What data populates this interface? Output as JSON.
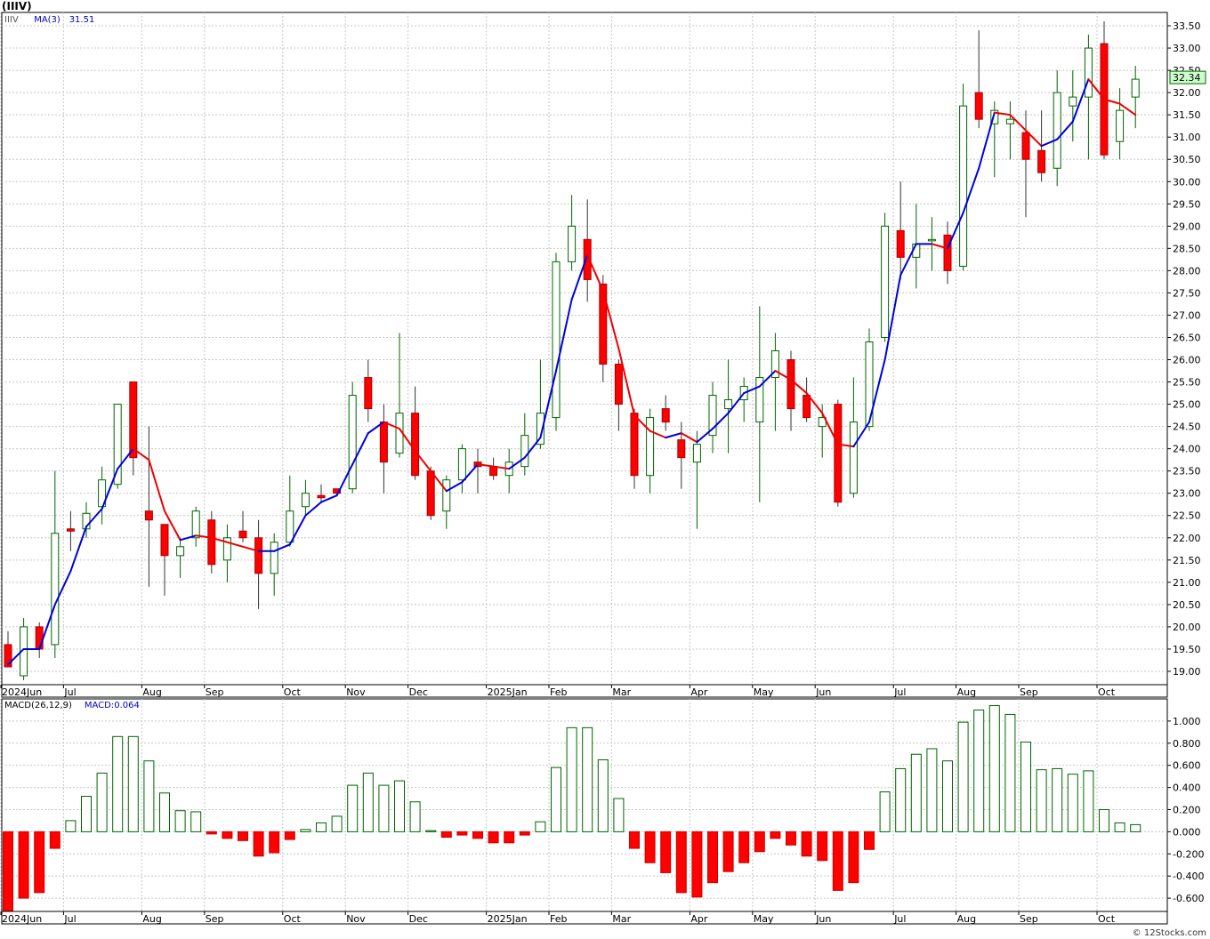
{
  "title": "(IIIV)",
  "credit": "© 12Stocks.com",
  "chart_data": [
    {
      "type": "candlestick",
      "title": "(IIIV)",
      "legend": [
        {
          "text": "IIIV",
          "color": "#555555"
        },
        {
          "text": "MA(3)",
          "color": "#0000cc"
        },
        {
          "text": "31.51",
          "color": "#0000cc"
        }
      ],
      "last_price": "32.34",
      "ylim": [
        18.7,
        33.8
      ],
      "grid": true,
      "y_ticks": [
        "19.00",
        "19.50",
        "20.00",
        "20.50",
        "21.00",
        "21.50",
        "22.00",
        "22.50",
        "23.00",
        "23.50",
        "24.00",
        "24.50",
        "25.00",
        "25.50",
        "26.00",
        "26.50",
        "27.00",
        "27.50",
        "28.00",
        "28.50",
        "29.00",
        "29.50",
        "30.00",
        "30.50",
        "31.00",
        "31.50",
        "32.00",
        "32.50",
        "33.00",
        "33.50"
      ],
      "x_labels": [
        {
          "label": "2024Jun",
          "week": 0
        },
        {
          "label": "Jul",
          "week": 4
        },
        {
          "label": "Aug",
          "week": 9
        },
        {
          "label": "Sep",
          "week": 13
        },
        {
          "label": "Oct",
          "week": 18
        },
        {
          "label": "Nov",
          "week": 22
        },
        {
          "label": "Dec",
          "week": 26
        },
        {
          "label": "2025Jan",
          "week": 31
        },
        {
          "label": "Feb",
          "week": 35
        },
        {
          "label": "Mar",
          "week": 39
        },
        {
          "label": "Apr",
          "week": 44
        },
        {
          "label": "May",
          "week": 48
        },
        {
          "label": "Jun",
          "week": 52
        },
        {
          "label": "Jul",
          "week": 57
        },
        {
          "label": "Aug",
          "week": 61
        },
        {
          "label": "Sep",
          "week": 65
        },
        {
          "label": "Oct",
          "week": 70
        }
      ],
      "candles": [
        {
          "o": 19.6,
          "h": 19.9,
          "l": 19.1,
          "c": 19.1
        },
        {
          "o": 18.9,
          "h": 20.2,
          "l": 18.8,
          "c": 20.0
        },
        {
          "o": 20.0,
          "h": 20.1,
          "l": 19.3,
          "c": 19.5
        },
        {
          "o": 19.6,
          "h": 23.5,
          "l": 19.3,
          "c": 22.1
        },
        {
          "o": 22.2,
          "h": 22.6,
          "l": 21.7,
          "c": 22.15
        },
        {
          "o": 22.2,
          "h": 22.8,
          "l": 22.0,
          "c": 22.55
        },
        {
          "o": 22.7,
          "h": 23.6,
          "l": 22.3,
          "c": 23.3
        },
        {
          "o": 23.2,
          "h": 25.0,
          "l": 23.1,
          "c": 25.0
        },
        {
          "o": 25.5,
          "h": 25.5,
          "l": 23.4,
          "c": 23.8
        },
        {
          "o": 22.6,
          "h": 24.5,
          "l": 20.9,
          "c": 22.4
        },
        {
          "o": 22.3,
          "h": 22.3,
          "l": 20.7,
          "c": 21.6
        },
        {
          "o": 21.6,
          "h": 22.0,
          "l": 21.1,
          "c": 21.8
        },
        {
          "o": 22.0,
          "h": 22.7,
          "l": 21.8,
          "c": 22.6
        },
        {
          "o": 22.4,
          "h": 22.6,
          "l": 21.2,
          "c": 21.4
        },
        {
          "o": 21.5,
          "h": 22.3,
          "l": 21.0,
          "c": 22.0
        },
        {
          "o": 22.15,
          "h": 22.6,
          "l": 21.9,
          "c": 22.0
        },
        {
          "o": 22.0,
          "h": 22.4,
          "l": 20.4,
          "c": 21.2
        },
        {
          "o": 21.2,
          "h": 22.1,
          "l": 20.7,
          "c": 21.9
        },
        {
          "o": 21.9,
          "h": 23.4,
          "l": 21.8,
          "c": 22.6
        },
        {
          "o": 22.7,
          "h": 23.3,
          "l": 22.5,
          "c": 23.0
        },
        {
          "o": 22.95,
          "h": 23.2,
          "l": 22.8,
          "c": 22.9
        },
        {
          "o": 23.1,
          "h": 23.1,
          "l": 22.95,
          "c": 23.0
        },
        {
          "o": 23.1,
          "h": 25.5,
          "l": 23.0,
          "c": 25.2
        },
        {
          "o": 25.6,
          "h": 26.0,
          "l": 24.6,
          "c": 24.9
        },
        {
          "o": 24.6,
          "h": 25.0,
          "l": 23.0,
          "c": 23.7
        },
        {
          "o": 23.9,
          "h": 26.6,
          "l": 23.8,
          "c": 24.8
        },
        {
          "o": 24.8,
          "h": 25.4,
          "l": 23.3,
          "c": 23.4
        },
        {
          "o": 23.5,
          "h": 23.6,
          "l": 22.4,
          "c": 22.5
        },
        {
          "o": 22.6,
          "h": 23.4,
          "l": 22.2,
          "c": 23.3
        },
        {
          "o": 23.3,
          "h": 24.1,
          "l": 23.0,
          "c": 24.0
        },
        {
          "o": 23.7,
          "h": 24.0,
          "l": 23.0,
          "c": 23.6
        },
        {
          "o": 23.6,
          "h": 23.8,
          "l": 23.3,
          "c": 23.4
        },
        {
          "o": 23.4,
          "h": 24.0,
          "l": 23.0,
          "c": 23.7
        },
        {
          "o": 23.6,
          "h": 24.8,
          "l": 23.4,
          "c": 24.3
        },
        {
          "o": 24.1,
          "h": 26.0,
          "l": 24.0,
          "c": 24.8
        },
        {
          "o": 24.7,
          "h": 28.4,
          "l": 24.4,
          "c": 28.2
        },
        {
          "o": 28.2,
          "h": 29.7,
          "l": 28.0,
          "c": 29.0
        },
        {
          "o": 28.7,
          "h": 29.6,
          "l": 27.3,
          "c": 27.8
        },
        {
          "o": 27.7,
          "h": 27.9,
          "l": 25.5,
          "c": 25.9
        },
        {
          "o": 25.9,
          "h": 26.0,
          "l": 24.4,
          "c": 25.0
        },
        {
          "o": 24.8,
          "h": 24.9,
          "l": 23.1,
          "c": 23.4
        },
        {
          "o": 23.4,
          "h": 24.9,
          "l": 23.0,
          "c": 24.7
        },
        {
          "o": 24.9,
          "h": 25.2,
          "l": 24.4,
          "c": 24.6
        },
        {
          "o": 24.2,
          "h": 24.6,
          "l": 23.1,
          "c": 23.8
        },
        {
          "o": 23.7,
          "h": 24.4,
          "l": 22.2,
          "c": 24.1
        },
        {
          "o": 24.3,
          "h": 25.5,
          "l": 23.9,
          "c": 25.2
        },
        {
          "o": 24.9,
          "h": 26.0,
          "l": 23.9,
          "c": 25.1
        },
        {
          "o": 25.1,
          "h": 25.6,
          "l": 24.6,
          "c": 25.4
        },
        {
          "o": 24.6,
          "h": 27.2,
          "l": 22.8,
          "c": 25.6
        },
        {
          "o": 25.6,
          "h": 26.6,
          "l": 24.4,
          "c": 26.2
        },
        {
          "o": 26.0,
          "h": 26.2,
          "l": 24.4,
          "c": 24.9
        },
        {
          "o": 25.2,
          "h": 25.6,
          "l": 24.6,
          "c": 24.7
        },
        {
          "o": 24.5,
          "h": 25.0,
          "l": 23.8,
          "c": 24.7
        },
        {
          "o": 25.0,
          "h": 25.1,
          "l": 22.7,
          "c": 22.8
        },
        {
          "o": 23.0,
          "h": 25.6,
          "l": 22.9,
          "c": 24.6
        },
        {
          "o": 24.5,
          "h": 26.7,
          "l": 24.4,
          "c": 26.4
        },
        {
          "o": 26.5,
          "h": 29.3,
          "l": 26.4,
          "c": 29.0
        },
        {
          "o": 28.9,
          "h": 30.0,
          "l": 27.8,
          "c": 28.3
        },
        {
          "o": 28.3,
          "h": 29.5,
          "l": 27.6,
          "c": 28.6
        },
        {
          "o": 28.7,
          "h": 29.2,
          "l": 28.0,
          "c": 28.7
        },
        {
          "o": 28.8,
          "h": 29.1,
          "l": 27.7,
          "c": 28.0
        },
        {
          "o": 28.1,
          "h": 32.2,
          "l": 28.0,
          "c": 31.7
        },
        {
          "o": 32.0,
          "h": 33.4,
          "l": 31.2,
          "c": 31.4
        },
        {
          "o": 31.3,
          "h": 31.8,
          "l": 30.1,
          "c": 31.6
        },
        {
          "o": 31.3,
          "h": 31.8,
          "l": 30.5,
          "c": 31.4
        },
        {
          "o": 31.1,
          "h": 31.6,
          "l": 29.2,
          "c": 30.5
        },
        {
          "o": 30.7,
          "h": 31.6,
          "l": 30.0,
          "c": 30.2
        },
        {
          "o": 30.3,
          "h": 32.5,
          "l": 29.9,
          "c": 32.0
        },
        {
          "o": 31.7,
          "h": 32.5,
          "l": 30.9,
          "c": 31.9
        },
        {
          "o": 31.9,
          "h": 33.3,
          "l": 30.5,
          "c": 33.0
        },
        {
          "o": 33.1,
          "h": 33.6,
          "l": 30.5,
          "c": 30.6
        },
        {
          "o": 30.9,
          "h": 32.1,
          "l": 30.5,
          "c": 31.6
        },
        {
          "o": 31.9,
          "h": 32.6,
          "l": 31.2,
          "c": 32.3
        }
      ],
      "ma3": [
        19.15,
        19.5,
        19.5,
        20.5,
        21.25,
        22.25,
        22.65,
        23.55,
        24.0,
        23.75,
        22.6,
        21.95,
        22.05,
        22.0,
        21.9,
        21.8,
        21.7,
        21.7,
        21.85,
        22.5,
        22.8,
        22.95,
        23.65,
        24.35,
        24.6,
        24.45,
        23.95,
        23.5,
        23.05,
        23.25,
        23.65,
        23.6,
        23.55,
        23.8,
        24.25,
        25.75,
        27.35,
        28.35,
        27.55,
        26.25,
        24.75,
        24.4,
        24.25,
        24.35,
        24.15,
        24.45,
        24.8,
        25.25,
        25.4,
        25.75,
        25.55,
        25.25,
        24.8,
        24.1,
        24.05,
        24.6,
        26.0,
        27.9,
        28.6,
        28.6,
        28.5,
        29.3,
        30.3,
        31.55,
        31.5,
        31.15,
        30.8,
        30.95,
        31.35,
        32.3,
        31.85,
        31.75,
        31.5
      ]
    },
    {
      "type": "bar",
      "title": "MACD(26,12,9)",
      "legend": [
        {
          "text": "MACD(26,12,9)",
          "color": "#000000"
        },
        {
          "text": "MACD:0.064",
          "color": "#0000cc"
        }
      ],
      "ylim": [
        -0.72,
        1.2
      ],
      "grid": true,
      "y_ticks": [
        "-0.600",
        "-0.400",
        "-0.200",
        "0.000",
        "0.200",
        "0.400",
        "0.600",
        "0.800",
        "1.000"
      ],
      "values": [
        -0.75,
        -0.6,
        -0.55,
        -0.15,
        0.1,
        0.32,
        0.53,
        0.86,
        0.86,
        0.64,
        0.35,
        0.19,
        0.18,
        -0.02,
        -0.06,
        -0.08,
        -0.22,
        -0.19,
        -0.07,
        0.02,
        0.08,
        0.14,
        0.42,
        0.53,
        0.42,
        0.46,
        0.27,
        0.01,
        -0.05,
        -0.03,
        -0.06,
        -0.1,
        -0.1,
        -0.03,
        0.09,
        0.58,
        0.94,
        0.94,
        0.65,
        0.3,
        -0.15,
        -0.28,
        -0.37,
        -0.55,
        -0.59,
        -0.46,
        -0.36,
        -0.28,
        -0.18,
        -0.06,
        -0.12,
        -0.22,
        -0.26,
        -0.53,
        -0.46,
        -0.16,
        0.36,
        0.57,
        0.7,
        0.75,
        0.64,
        0.99,
        1.1,
        1.14,
        1.06,
        0.81,
        0.56,
        0.57,
        0.52,
        0.55,
        0.2,
        0.08,
        0.064
      ]
    }
  ]
}
